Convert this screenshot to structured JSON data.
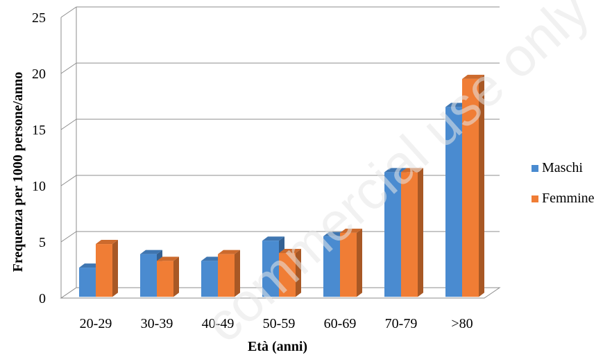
{
  "chart_data": {
    "type": "bar",
    "style": "3d-clustered-column",
    "categories": [
      "20-29",
      "30-39",
      "40-49",
      "50-59",
      "60-69",
      "70-79",
      ">80"
    ],
    "series": [
      {
        "name": "Maschi",
        "color": "#4a8bd0",
        "values": [
          2.6,
          3.8,
          3.2,
          5.0,
          5.4,
          11.1,
          16.9
        ]
      },
      {
        "name": "Femmine",
        "color": "#f07d35",
        "values": [
          4.7,
          3.2,
          3.8,
          3.9,
          5.7,
          11.1,
          19.4
        ]
      }
    ],
    "xlabel": "Età (anni)",
    "ylabel": "Frequenza per 1000 persone/anno",
    "ylim": [
      0,
      25
    ],
    "yticks": [
      0,
      5,
      10,
      15,
      20,
      25
    ],
    "grid": true,
    "legend": "right"
  },
  "watermark": "commercial use only"
}
